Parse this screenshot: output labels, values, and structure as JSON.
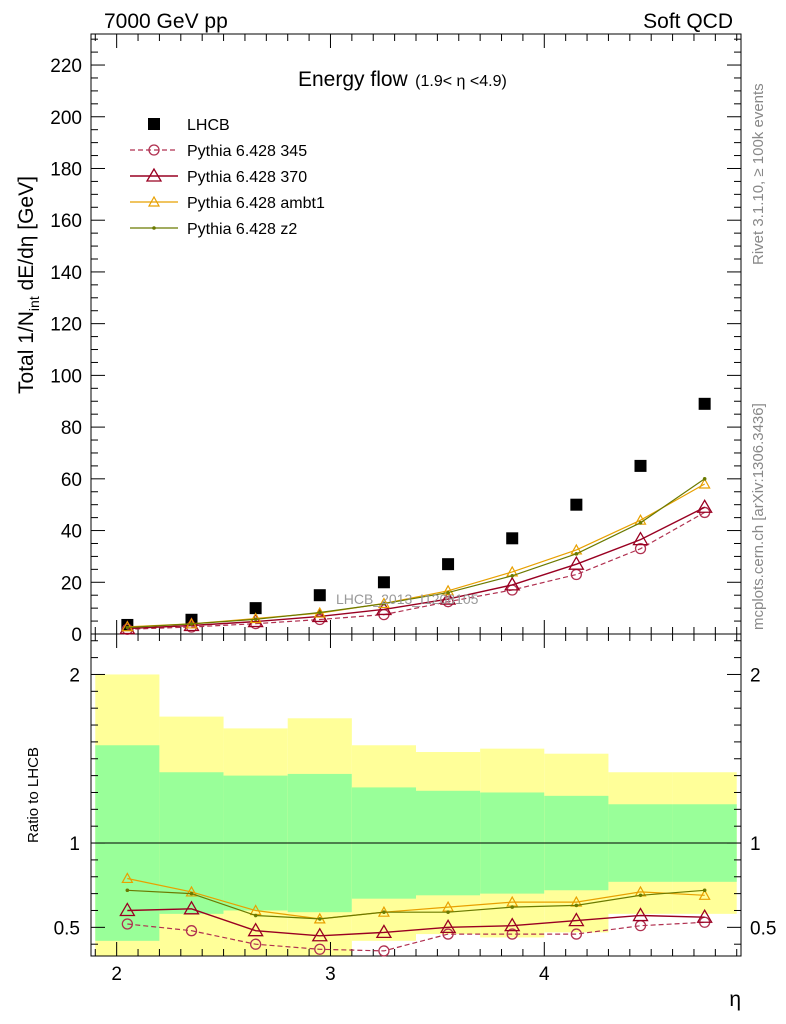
{
  "header": {
    "left": "7000 GeV pp",
    "right": "Soft QCD"
  },
  "side_labels": {
    "top": "Rivet 3.1.10, ≥ 100k events",
    "bottom": "mcplots.cern.ch [arXiv:1306.3436]"
  },
  "watermark": "LHCB_2013_I1208105",
  "colors": {
    "data": "#000000",
    "p345": "#b03050",
    "p370": "#990022",
    "ambt1": "#e8a000",
    "z2": "#6b7a00",
    "band_green": "#99ff99",
    "band_yellow": "#ffff99"
  },
  "chart_data": [
    {
      "type": "scatter",
      "title": "Energy flow",
      "title_range": "(1.9< η <4.9)",
      "ylabel": "Total 1/N",
      "ylabel_sub": "int",
      "ylabel_tail": " dE/dη [GeV]",
      "xlim": [
        1.88,
        4.92
      ],
      "ylim": [
        0,
        232
      ],
      "yticks": [
        0,
        20,
        40,
        60,
        80,
        100,
        120,
        140,
        160,
        180,
        200,
        220
      ],
      "xticks": [
        2,
        3,
        4
      ],
      "legend_position": "top-left",
      "x": [
        2.05,
        2.35,
        2.65,
        2.95,
        3.25,
        3.55,
        3.85,
        4.15,
        4.45,
        4.75
      ],
      "series": [
        {
          "name": "LHCB",
          "style": "data",
          "values": [
            3.5,
            5.5,
            10,
            15,
            20,
            27,
            37,
            50,
            65,
            89
          ]
        },
        {
          "name": "Pythia 6.428 345",
          "style": "p345",
          "values": [
            1.8,
            2.7,
            4.0,
            5.6,
            7.5,
            12.5,
            17.0,
            23.0,
            33.0,
            47.0
          ]
        },
        {
          "name": "Pythia 6.428 370",
          "style": "p370",
          "values": [
            2.1,
            3.3,
            4.8,
            6.8,
            9.5,
            13.5,
            19.0,
            27.0,
            36.5,
            49.0
          ]
        },
        {
          "name": "Pythia 6.428 ambt1",
          "style": "ambt1",
          "values": [
            2.8,
            3.9,
            6.0,
            8.1,
            11.8,
            16.7,
            24.0,
            32.5,
            44.0,
            58.0
          ]
        },
        {
          "name": "Pythia 6.428 z2",
          "style": "z2",
          "values": [
            2.5,
            3.9,
            5.7,
            8.3,
            11.7,
            16.0,
            22.5,
            31.0,
            43.0,
            60.0
          ]
        }
      ]
    },
    {
      "type": "line",
      "ylabel": "Ratio to LHCB",
      "xlabel": "η",
      "ylim": [
        0.33,
        2.24
      ],
      "yticks": [
        0.5,
        1,
        2
      ],
      "xticks": [
        2,
        3,
        4
      ],
      "bins": [
        [
          1.9,
          2.2
        ],
        [
          2.2,
          2.5
        ],
        [
          2.5,
          2.8
        ],
        [
          2.8,
          3.1
        ],
        [
          3.1,
          3.4
        ],
        [
          3.4,
          3.7
        ],
        [
          3.7,
          4.0
        ],
        [
          4.0,
          4.3
        ],
        [
          4.3,
          4.6
        ],
        [
          4.6,
          4.9
        ]
      ],
      "band_stat": [
        0.58,
        0.42,
        0.4,
        0.41,
        0.33,
        0.31,
        0.3,
        0.28,
        0.23,
        0.23
      ],
      "band_total": [
        1.0,
        0.75,
        0.68,
        0.74,
        0.58,
        0.54,
        0.56,
        0.53,
        0.42,
        0.42
      ],
      "reference": 1,
      "x": [
        2.05,
        2.35,
        2.65,
        2.95,
        3.25,
        3.55,
        3.85,
        4.15,
        4.45,
        4.75
      ],
      "series": [
        {
          "name": "Pythia 6.428 345",
          "style": "p345",
          "values": [
            0.52,
            0.48,
            0.4,
            0.37,
            0.36,
            0.46,
            0.46,
            0.46,
            0.51,
            0.53
          ]
        },
        {
          "name": "Pythia 6.428 370",
          "style": "p370",
          "values": [
            0.6,
            0.61,
            0.48,
            0.45,
            0.47,
            0.5,
            0.51,
            0.54,
            0.57,
            0.56
          ]
        },
        {
          "name": "Pythia 6.428 ambt1",
          "style": "ambt1",
          "values": [
            0.79,
            0.71,
            0.6,
            0.55,
            0.59,
            0.62,
            0.65,
            0.65,
            0.71,
            0.69
          ]
        },
        {
          "name": "Pythia 6.428 z2",
          "style": "z2",
          "values": [
            0.72,
            0.7,
            0.57,
            0.55,
            0.59,
            0.59,
            0.62,
            0.63,
            0.69,
            0.72
          ]
        }
      ]
    }
  ]
}
